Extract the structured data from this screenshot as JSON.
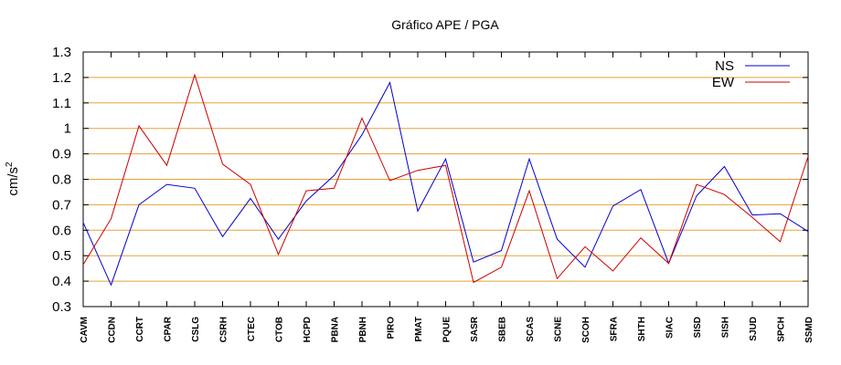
{
  "chart_data": {
    "type": "line",
    "title": "Gráfico  APE / PGA",
    "ylabel": "cm/s",
    "ylabel_sup": "2",
    "xlabel": "",
    "ylim": [
      0.3,
      1.3
    ],
    "yticks": [
      "0.3",
      "0.4",
      "0.5",
      "0.6",
      "0.7",
      "0.8",
      "0.9",
      "1",
      "1.1",
      "1.2",
      "1.3"
    ],
    "grid": true,
    "grid_color": "#e6a23c",
    "legend_position": "top-right",
    "categories": [
      "CAVM",
      "CCDN",
      "CCRT",
      "CPAR",
      "CSLG",
      "CSRH",
      "CTEC",
      "CTOB",
      "HCPD",
      "PBNA",
      "PBNH",
      "PIRO",
      "PMAT",
      "PQUE",
      "SASR",
      "SBEB",
      "SCAS",
      "SCNE",
      "SCOH",
      "SFRA",
      "SHTH",
      "SIAC",
      "SISD",
      "SISH",
      "SJUD",
      "SPCH",
      "SSMD"
    ],
    "series": [
      {
        "name": "NS",
        "color": "#0000cc",
        "values": [
          0.63,
          0.385,
          0.7,
          0.78,
          0.765,
          0.575,
          0.725,
          0.565,
          0.715,
          0.815,
          0.975,
          1.18,
          0.675,
          0.88,
          0.475,
          0.52,
          0.88,
          0.565,
          0.455,
          0.695,
          0.76,
          0.47,
          0.735,
          0.85,
          0.66,
          0.665,
          0.595
        ]
      },
      {
        "name": "EW",
        "color": "#cc0000",
        "values": [
          0.465,
          0.645,
          1.01,
          0.855,
          1.21,
          0.86,
          0.78,
          0.505,
          0.755,
          0.765,
          1.04,
          0.795,
          0.835,
          0.855,
          0.395,
          0.455,
          0.755,
          0.41,
          0.535,
          0.44,
          0.57,
          0.47,
          0.78,
          0.74,
          0.65,
          0.555,
          0.89
        ]
      }
    ]
  }
}
